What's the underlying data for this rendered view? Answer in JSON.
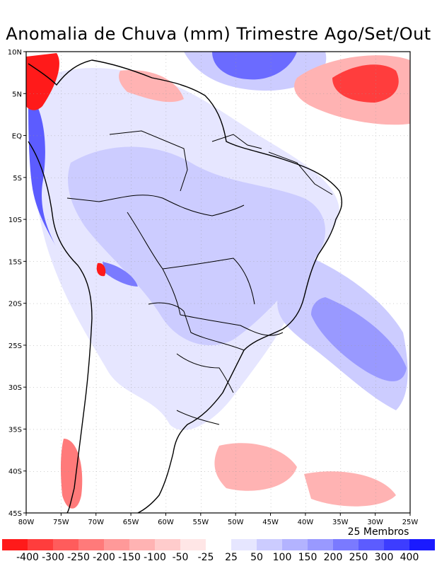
{
  "title": "Anomalia de Chuva (mm) Trimestre Ago/Set/Out",
  "footer_note": "25 Membros",
  "axes": {
    "lon_labels": [
      "80W",
      "75W",
      "70W",
      "65W",
      "60W",
      "55W",
      "50W",
      "45W",
      "40W",
      "35W",
      "30W",
      "25W"
    ],
    "lat_labels": [
      "10N",
      "5N",
      "EQ",
      "5S",
      "10S",
      "15S",
      "20S",
      "25S",
      "30S",
      "35S",
      "40S",
      "45S"
    ]
  },
  "colorbar": {
    "labels": [
      "-400",
      "-300",
      "-250",
      "-200",
      "-150",
      "-100",
      "-50",
      "-25",
      "25",
      "50",
      "100",
      "150",
      "200",
      "250",
      "300",
      "400"
    ],
    "colors": [
      "#ff1a1a",
      "#ff3d3d",
      "#ff5c5c",
      "#ff7a7a",
      "#ff9999",
      "#ffb3b3",
      "#ffcccc",
      "#ffe6e6",
      "#ffffff",
      "#e6e6ff",
      "#ccccff",
      "#b3b3ff",
      "#9999ff",
      "#7a7aff",
      "#5c5cff",
      "#3d3dff",
      "#1a1aff"
    ]
  },
  "map": {
    "region": "Brazil / South America",
    "extent": {
      "lon": [
        -80,
        -25
      ],
      "lat": [
        -45,
        10
      ]
    }
  }
}
